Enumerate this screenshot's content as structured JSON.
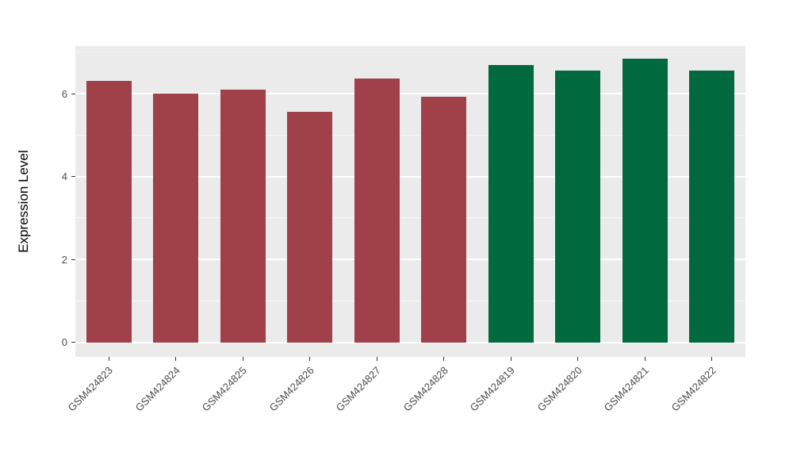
{
  "chart_data": {
    "type": "bar",
    "title": "",
    "xlabel": "",
    "ylabel": "Expression Level",
    "categories": [
      "GSM424823",
      "GSM424824",
      "GSM424825",
      "GSM424826",
      "GSM424827",
      "GSM424828",
      "GSM424819",
      "GSM424820",
      "GSM424821",
      "GSM424822"
    ],
    "values": [
      6.3,
      6.0,
      6.1,
      5.57,
      6.36,
      5.92,
      6.7,
      6.55,
      6.84,
      6.55
    ],
    "groups": [
      "red",
      "red",
      "red",
      "red",
      "red",
      "red",
      "green",
      "green",
      "green",
      "green"
    ],
    "group_colors": {
      "red": "#A04048",
      "green": "#00693E"
    },
    "ylim": [
      -0.35,
      7.15
    ],
    "yticks_major": [
      0,
      2,
      4,
      6
    ],
    "ytick_labels": [
      "0",
      "2",
      "4",
      "6"
    ],
    "yticks_minor": [
      1,
      3,
      5,
      7
    ],
    "bar_width_fraction": 0.68,
    "panel_bg": "#EBEBEB",
    "grid_color": "#FFFFFF",
    "tick_label_color": "#4D4D4D",
    "legend": "none",
    "grid": "on"
  }
}
